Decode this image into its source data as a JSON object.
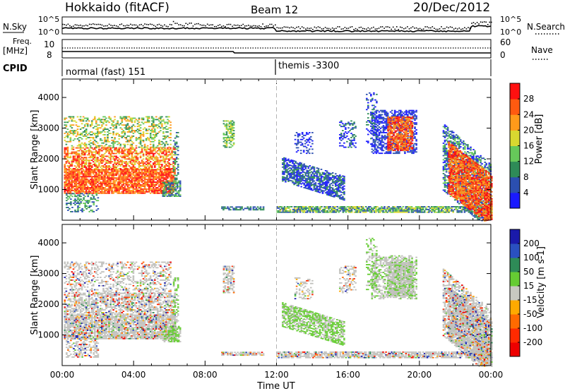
{
  "header": {
    "station": "Hokkaido (fitACF)",
    "beam": "Beam 12",
    "date": "20/Dec/2012"
  },
  "labels": {
    "nsky": "N.Sky",
    "nsearch": "N.Search",
    "freq": "Freq.",
    "freq_unit": "[MHz]",
    "nave": "Nave",
    "cpid": "CPID"
  },
  "ticks": {
    "nsky_top": "10^5",
    "nsky_bottom": "10^0",
    "freq_top": "10",
    "freq_bottom": "8",
    "nave_top": "60",
    "nave_bottom": "0"
  },
  "cpid_segments": [
    {
      "name": "normal (fast) 151",
      "start": "00:00"
    },
    {
      "name": "themis -3300",
      "start": "12:00"
    }
  ],
  "chart_data": [
    {
      "type": "heatmap",
      "panel": "power",
      "ylabel": "Slant Range [km]",
      "xlabel": "Time UT",
      "x_ticks": [
        "00:00",
        "04:00",
        "08:00",
        "12:00",
        "16:00",
        "20:00",
        "00:00"
      ],
      "x_range_hours": [
        0,
        24
      ],
      "ylim": [
        0,
        4600
      ],
      "y_ticks": [
        1000,
        2000,
        3000,
        4000
      ],
      "colorbar": {
        "label": "Power [dB]",
        "ticks": [
          4,
          8,
          12,
          16,
          20,
          24,
          28
        ],
        "range": [
          0,
          32
        ],
        "colors": [
          "#1a1aff",
          "#2b4fb0",
          "#2e8b57",
          "#66c85a",
          "#d8d830",
          "#ff9a1a",
          "#ff5a10",
          "#ff1010"
        ]
      },
      "dashed_marker_hour": 12
    },
    {
      "type": "heatmap",
      "panel": "velocity",
      "ylabel": "Slant Range [km]",
      "xlabel": "Time UT",
      "x_ticks": [
        "00:00",
        "04:00",
        "08:00",
        "12:00",
        "16:00",
        "20:00",
        "00:00"
      ],
      "x_range_hours": [
        0,
        24
      ],
      "ylim": [
        0,
        4600
      ],
      "y_ticks": [
        1000,
        2000,
        3000,
        4000
      ],
      "colorbar": {
        "label": "Velocity [m s-1]",
        "ticks": [
          200,
          100,
          50,
          15,
          -15,
          -50,
          -100,
          -200
        ],
        "colors": [
          "#1a1aaa",
          "#2a50c0",
          "#2e8b57",
          "#66cc33",
          "#c8c8c0",
          "#ffaa00",
          "#ff6a00",
          "#ff2a00",
          "#ee0000"
        ]
      },
      "dashed_marker_hour": 12
    }
  ],
  "colors": {
    "ground_scatter": "#c0c0bc",
    "dashed_line": "#b4b4b4"
  }
}
